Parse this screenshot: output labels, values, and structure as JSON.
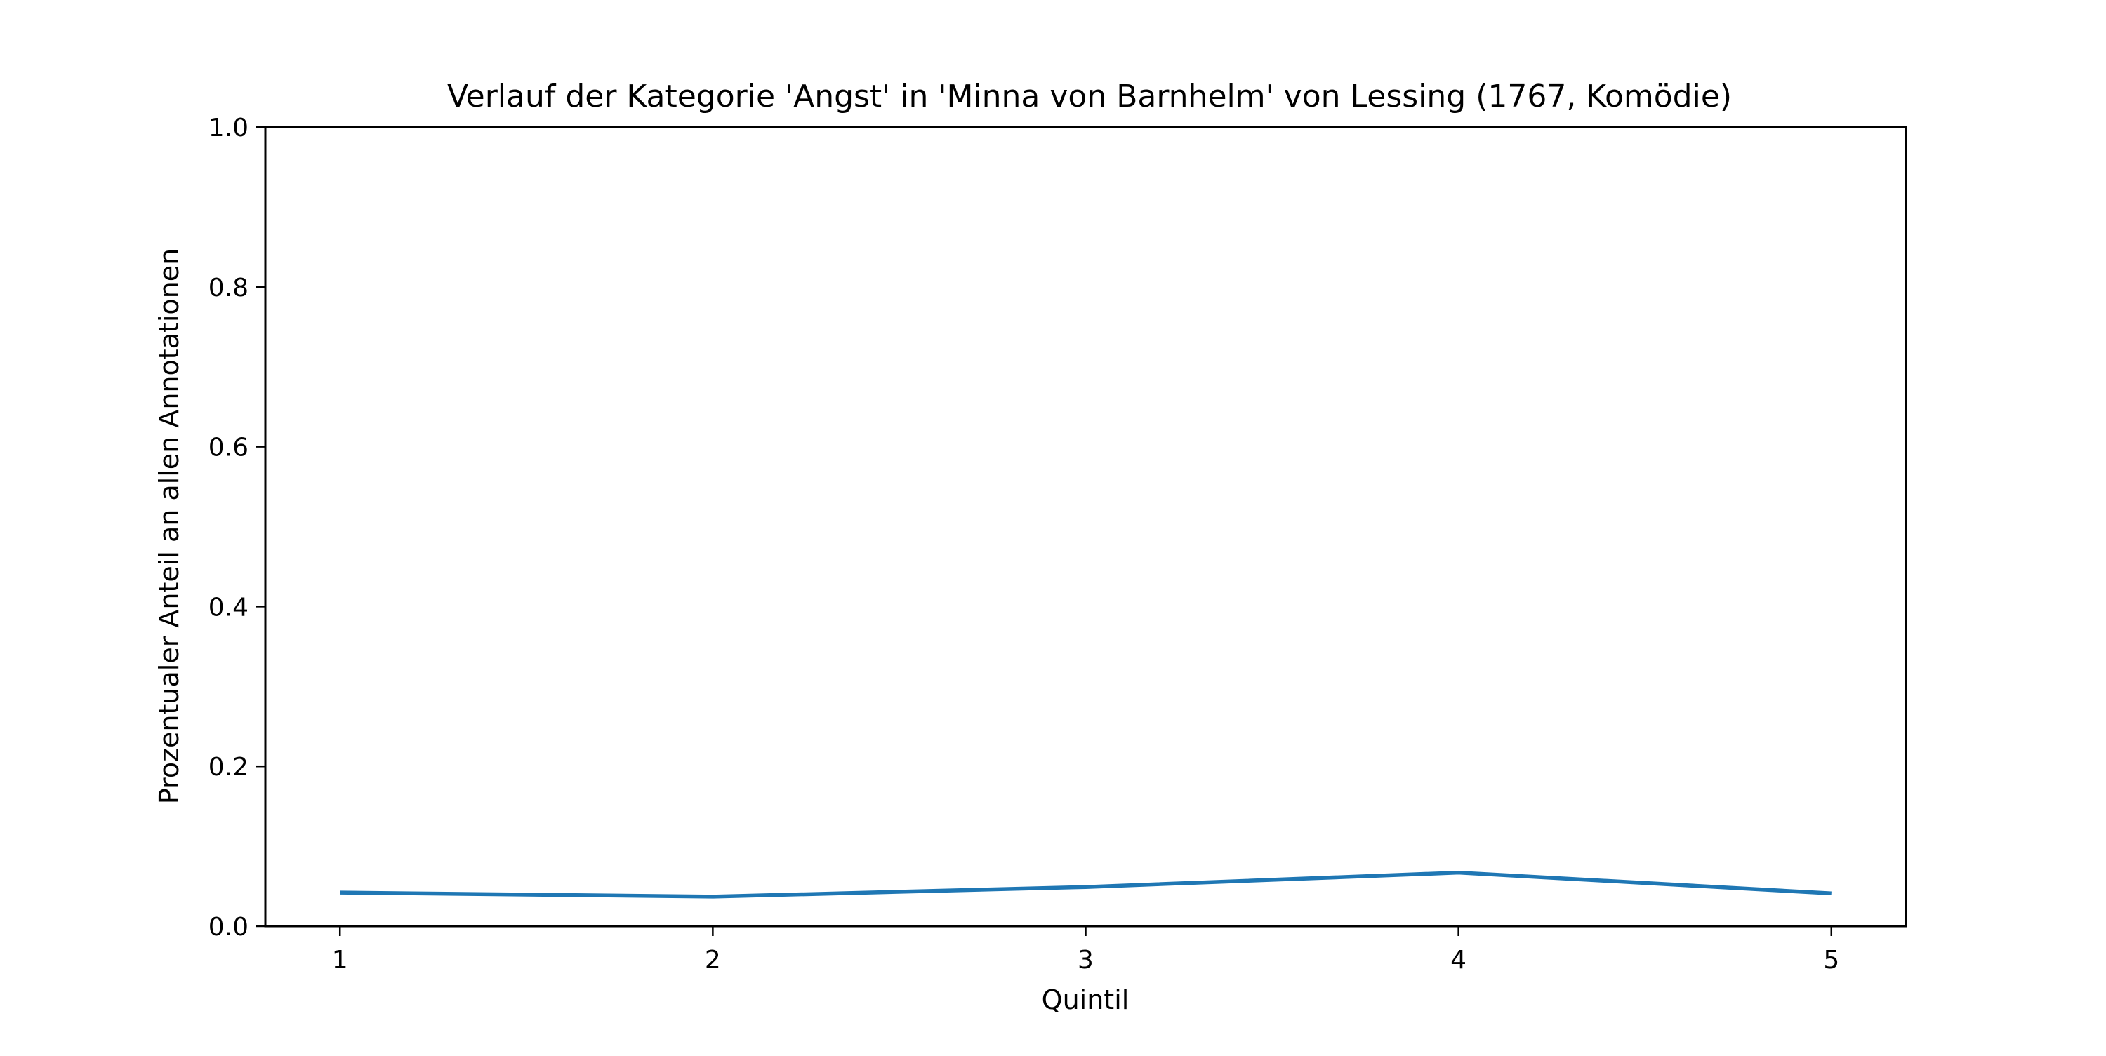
{
  "chart_data": {
    "type": "line",
    "title": "Verlauf der Kategorie 'Angst' in 'Minna von Barnhelm' von Lessing (1767, Komödie)",
    "xlabel": "Quintil",
    "ylabel": "Prozentualer Anteil an allen Annotationen",
    "x": [
      1,
      2,
      3,
      4,
      5
    ],
    "x_tick_labels": [
      "1",
      "2",
      "3",
      "4",
      "5"
    ],
    "xlim": [
      0.8,
      5.2
    ],
    "ylim": [
      0.0,
      1.0
    ],
    "y_ticks": [
      0.0,
      0.2,
      0.4,
      0.6,
      0.8,
      1.0
    ],
    "y_tick_labels": [
      "0.0",
      "0.2",
      "0.4",
      "0.6",
      "0.8",
      "1.0"
    ],
    "series": [
      {
        "values": [
          0.042,
          0.037,
          0.049,
          0.067,
          0.041
        ],
        "color": "#1f77b4"
      }
    ],
    "grid": false,
    "legend": "none"
  }
}
